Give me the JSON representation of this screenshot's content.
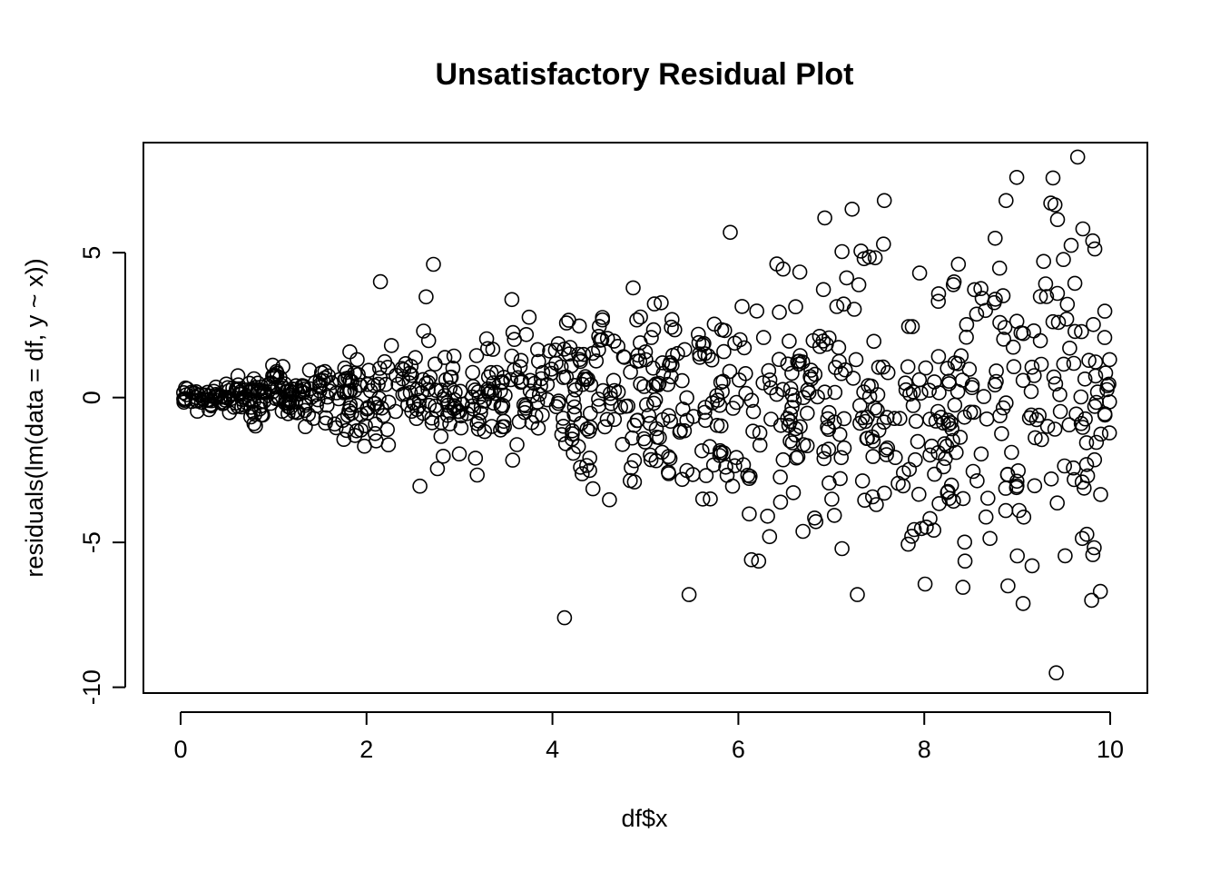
{
  "chart_data": {
    "type": "scatter",
    "title": "Unsatisfactory Residual Plot",
    "xlabel": "df$x",
    "ylabel": "residuals(lm(data = df, y ~ x))",
    "xlim": [
      -0.4,
      10.4
    ],
    "ylim": [
      -10.2,
      8.8
    ],
    "x_ticks": [
      0,
      2,
      4,
      6,
      8,
      10
    ],
    "y_ticks": [
      -10,
      -5,
      0,
      5
    ],
    "x_tick_labels": [
      "0",
      "2",
      "4",
      "6",
      "8",
      "10"
    ],
    "y_tick_labels": [
      "-10",
      "-5",
      "0",
      "5"
    ],
    "grid": false,
    "legend": "none",
    "marker": "open-circle",
    "point_count": 1000,
    "spread_model": "residual spread grows linearly with x (about 0.35*x)",
    "notable_points": [
      {
        "x": 9.65,
        "y": 8.3
      },
      {
        "x": 7.57,
        "y": 6.8
      },
      {
        "x": 8.88,
        "y": 6.8
      },
      {
        "x": 6.93,
        "y": 6.2
      },
      {
        "x": 4.13,
        "y": -7.6
      },
      {
        "x": 5.47,
        "y": -6.8
      },
      {
        "x": 9.8,
        "y": -7.0
      },
      {
        "x": 9.42,
        "y": -9.5
      },
      {
        "x": 8.9,
        "y": -6.5
      },
      {
        "x": 7.28,
        "y": -6.8
      },
      {
        "x": 2.72,
        "y": 4.6
      },
      {
        "x": 2.15,
        "y": 4.0
      }
    ]
  }
}
